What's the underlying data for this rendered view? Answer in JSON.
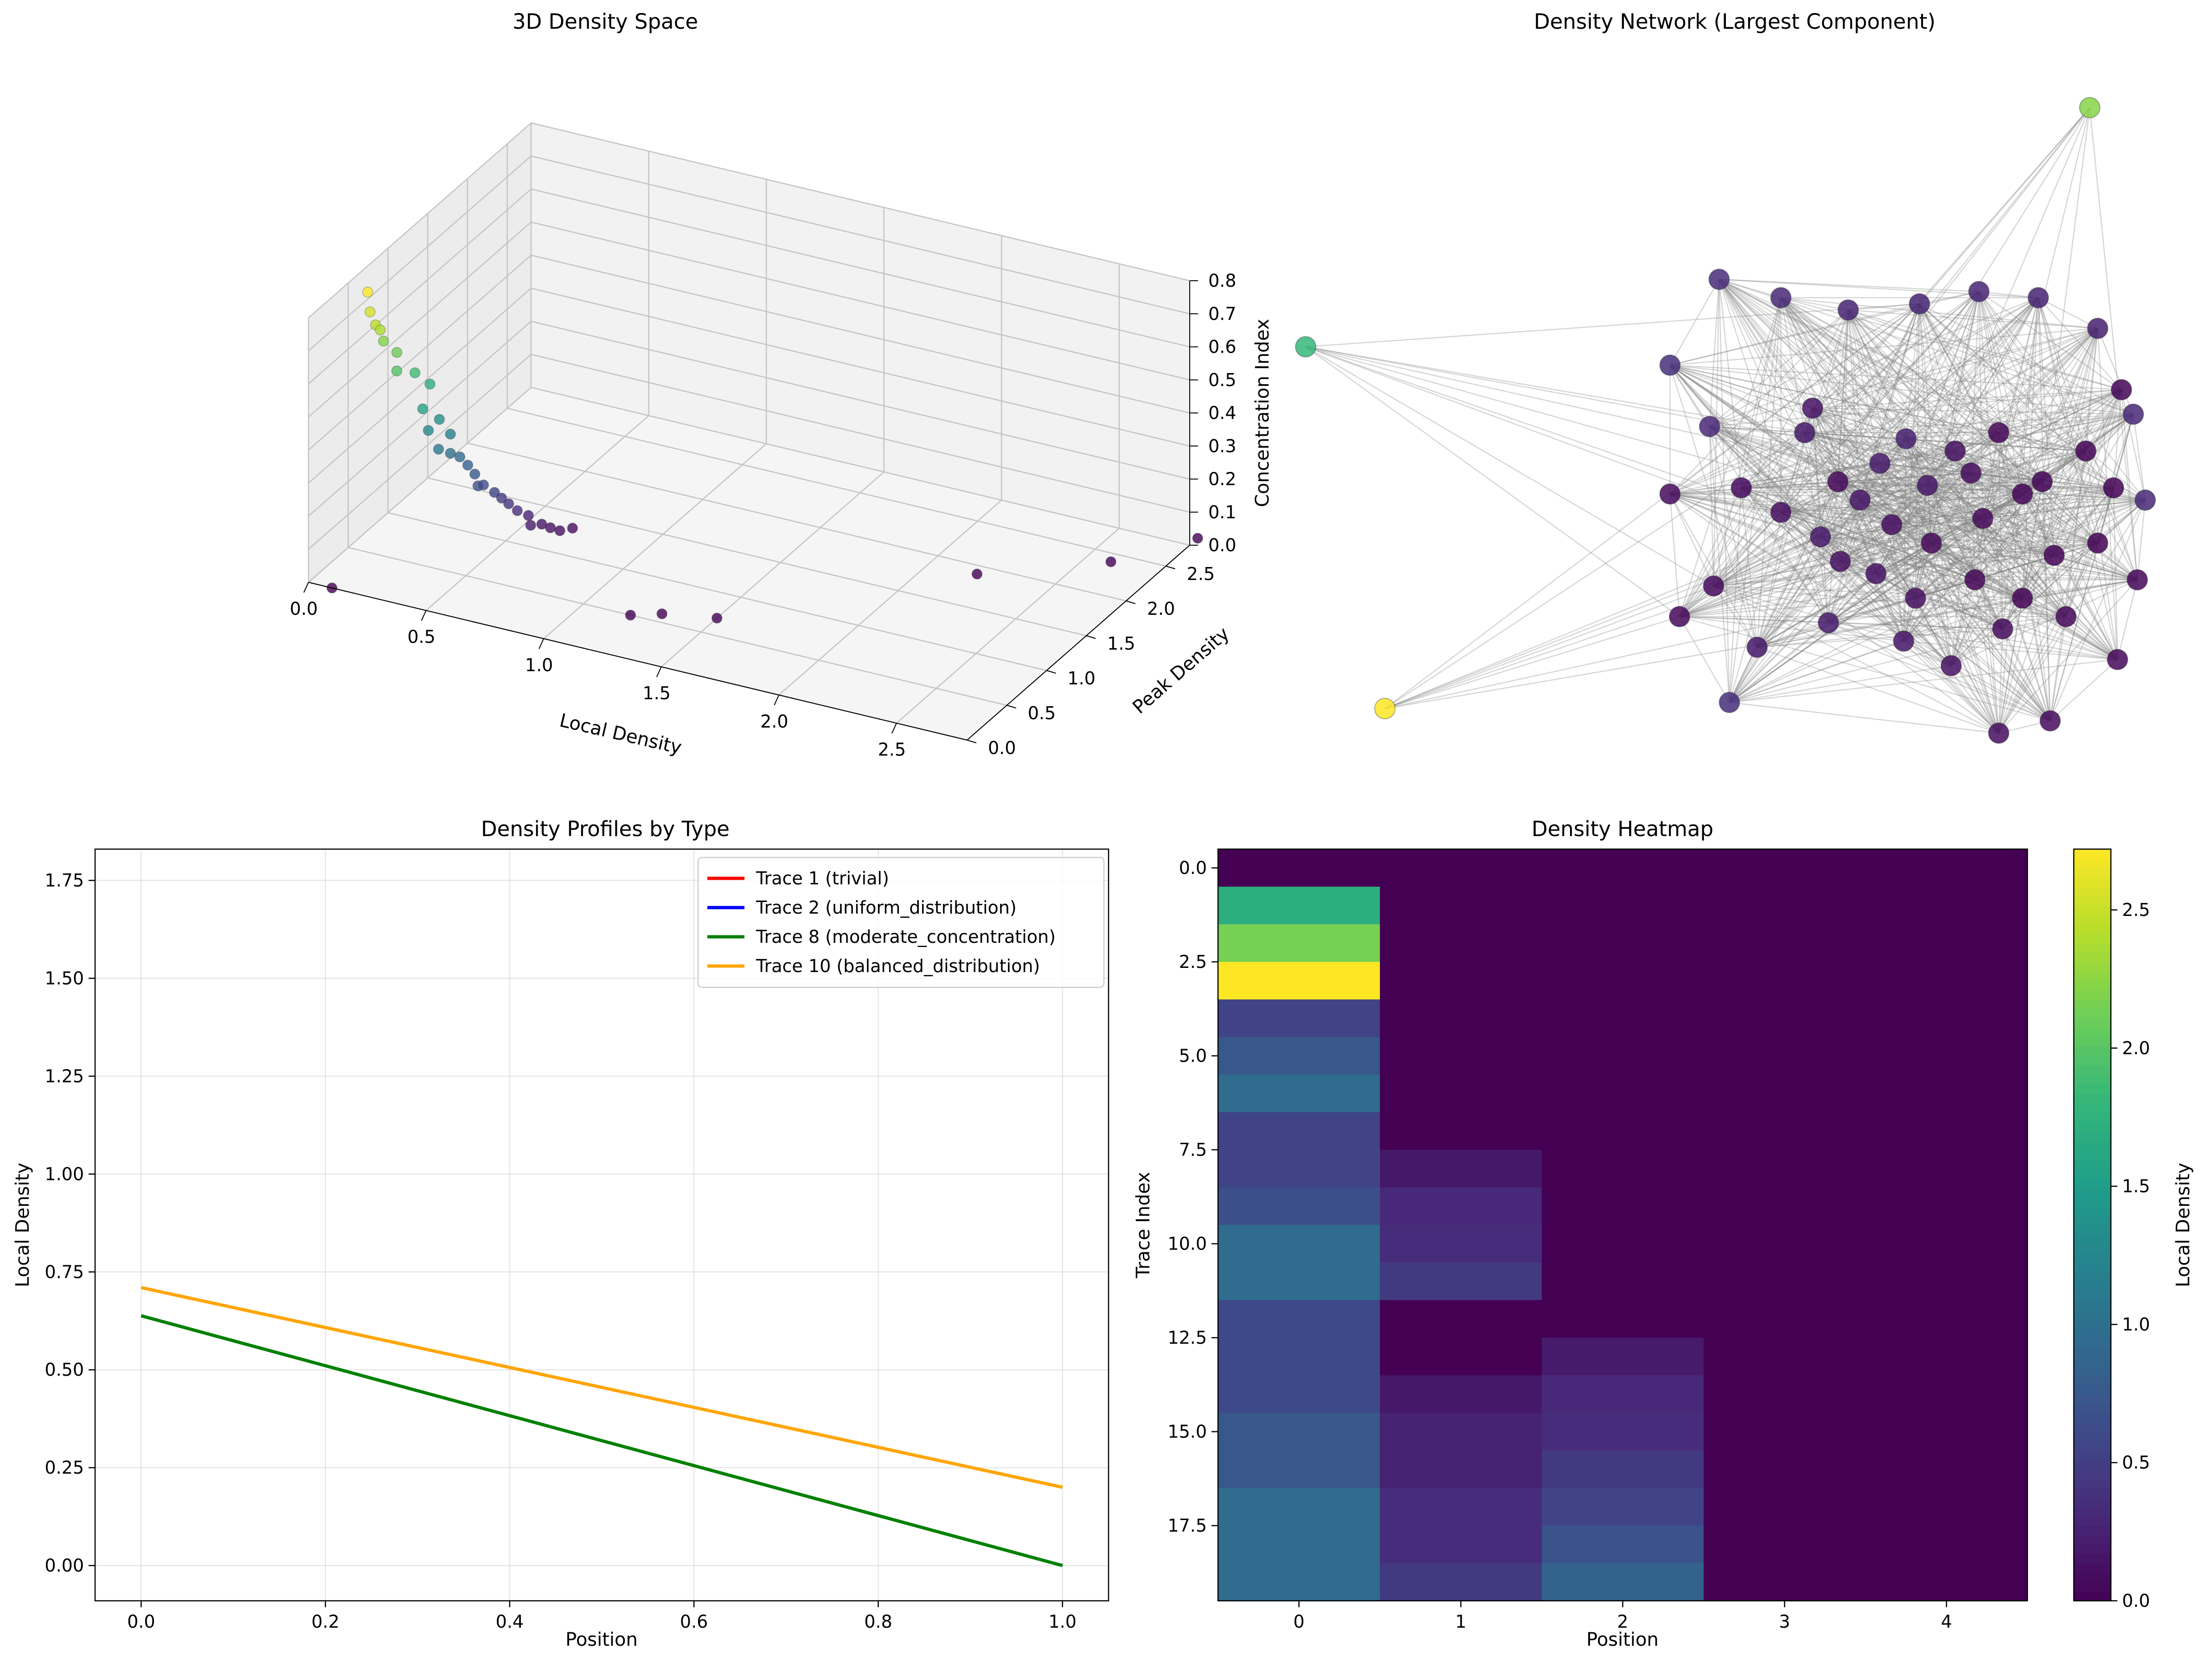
{
  "chart_data": [
    {
      "type": "scatter3d",
      "title": "3D Density Space",
      "xlabel": "Local Density",
      "ylabel": "Peak Density",
      "zlabel": "Concentration Index",
      "xticks": [
        "0.0",
        "0.5",
        "1.0",
        "1.5",
        "2.0",
        "2.5"
      ],
      "yticks": [
        "0.0",
        "0.5",
        "1.0",
        "1.5",
        "2.0",
        "2.5"
      ],
      "zticks": [
        "0.0",
        "0.1",
        "0.2",
        "0.3",
        "0.4",
        "0.5",
        "0.6",
        "0.7",
        "0.8"
      ],
      "xlim": [
        0,
        2.8
      ],
      "ylim": [
        0,
        2.8
      ],
      "zlim": [
        0,
        0.8
      ],
      "points": [
        [
          0.1,
          0.45,
          0.8
        ],
        [
          0.12,
          0.42,
          0.75
        ],
        [
          0.15,
          0.4,
          0.72
        ],
        [
          0.16,
          0.43,
          0.7
        ],
        [
          0.15,
          0.5,
          0.65
        ],
        [
          0.2,
          0.52,
          0.62
        ],
        [
          0.22,
          0.46,
          0.58
        ],
        [
          0.25,
          0.6,
          0.55
        ],
        [
          0.28,
          0.7,
          0.5
        ],
        [
          0.3,
          0.55,
          0.46
        ],
        [
          0.32,
          0.7,
          0.4
        ],
        [
          0.3,
          0.62,
          0.38
        ],
        [
          0.35,
          0.75,
          0.35
        ],
        [
          0.33,
          0.66,
          0.32
        ],
        [
          0.36,
          0.72,
          0.3
        ],
        [
          0.38,
          0.78,
          0.28
        ],
        [
          0.4,
          0.82,
          0.25
        ],
        [
          0.42,
          0.85,
          0.22
        ],
        [
          0.45,
          0.8,
          0.2
        ],
        [
          0.44,
          0.9,
          0.18
        ],
        [
          0.48,
          0.92,
          0.16
        ],
        [
          0.5,
          0.95,
          0.14
        ],
        [
          0.52,
          0.98,
          0.12
        ],
        [
          0.55,
          1.0,
          0.1
        ],
        [
          0.58,
          1.05,
          0.08
        ],
        [
          0.6,
          1.02,
          0.06
        ],
        [
          0.62,
          1.1,
          0.05
        ],
        [
          0.65,
          1.12,
          0.04
        ],
        [
          0.68,
          1.15,
          0.03
        ],
        [
          0.7,
          1.25,
          0.02
        ],
        [
          0.1,
          0.0,
          0.0
        ],
        [
          1.2,
          0.5,
          0.0
        ],
        [
          1.3,
          0.6,
          0.0
        ],
        [
          1.5,
          0.7,
          0.0
        ],
        [
          2.2,
          1.9,
          0.0
        ],
        [
          2.6,
          2.4,
          0.0
        ],
        [
          2.8,
          2.9,
          0.0
        ]
      ]
    },
    {
      "type": "network",
      "title": "Density Network (Largest Component)",
      "nodes": [
        {
          "x": 2.1,
          "y": 6.45,
          "v": 0.18
        },
        {
          "x": 2.2,
          "y": 6.65,
          "v": 0.14
        },
        {
          "x": 2.52,
          "y": 6.05,
          "v": 0.05
        },
        {
          "x": 3.05,
          "y": 6.2,
          "v": 0.2
        },
        {
          "x": 3.38,
          "y": 6.4,
          "v": 0.22
        },
        {
          "x": 2.8,
          "y": 5.9,
          "v": 0.15
        },
        {
          "x": 3.65,
          "y": 6.02,
          "v": 0.16
        },
        {
          "x": 4.2,
          "y": 6.12,
          "v": 0.08
        },
        {
          "x": 4.55,
          "y": 6.45,
          "v": 0.04
        },
        {
          "x": 4.0,
          "y": 6.3,
          "v": 0.12
        },
        {
          "x": 3.2,
          "y": 5.7,
          "v": 0.1
        },
        {
          "x": 3.7,
          "y": 5.55,
          "v": 0.06
        },
        {
          "x": 2.3,
          "y": 5.6,
          "v": 0.18
        },
        {
          "x": 1.8,
          "y": 5.8,
          "v": 0.1
        },
        {
          "x": 1.3,
          "y": 6.0,
          "v": 0.08
        },
        {
          "x": 2.55,
          "y": 5.4,
          "v": 0.12
        },
        {
          "x": 3.0,
          "y": 5.3,
          "v": 0.14
        },
        {
          "x": 3.5,
          "y": 5.1,
          "v": 0.1
        },
        {
          "x": 4.25,
          "y": 5.25,
          "v": 0.04
        },
        {
          "x": 4.85,
          "y": 5.1,
          "v": 0.02
        },
        {
          "x": 4.35,
          "y": 5.75,
          "v": 0.06
        },
        {
          "x": 4.85,
          "y": 5.95,
          "v": 0.04
        },
        {
          "x": 5.25,
          "y": 5.45,
          "v": 0.03
        },
        {
          "x": 5.8,
          "y": 5.55,
          "v": 0.02
        },
        {
          "x": 5.1,
          "y": 6.05,
          "v": 0.03
        },
        {
          "x": 5.65,
          "y": 6.3,
          "v": 0.02
        },
        {
          "x": 6.1,
          "y": 6.8,
          "v": 0.03
        },
        {
          "x": 6.0,
          "y": 6.0,
          "v": 0.02
        },
        {
          "x": 2.4,
          "y": 4.9,
          "v": 0.2
        },
        {
          "x": 1.5,
          "y": 4.7,
          "v": 0.18
        },
        {
          "x": 0.95,
          "y": 5.2,
          "v": 0.08
        },
        {
          "x": 3.35,
          "y": 4.75,
          "v": 0.16
        },
        {
          "x": 3.95,
          "y": 4.55,
          "v": 0.12
        },
        {
          "x": 4.6,
          "y": 4.85,
          "v": 0.08
        },
        {
          "x": 5.4,
          "y": 4.95,
          "v": 0.06
        },
        {
          "x": 6.05,
          "y": 4.6,
          "v": 0.05
        },
        {
          "x": 6.3,
          "y": 5.25,
          "v": 0.04
        },
        {
          "x": 6.4,
          "y": 5.9,
          "v": 0.3
        },
        {
          "x": 6.25,
          "y": 6.6,
          "v": 0.3
        },
        {
          "x": 5.8,
          "y": 7.3,
          "v": 0.22
        },
        {
          "x": 5.05,
          "y": 7.55,
          "v": 0.25
        },
        {
          "x": 4.3,
          "y": 7.6,
          "v": 0.28
        },
        {
          "x": 3.55,
          "y": 7.5,
          "v": 0.25
        },
        {
          "x": 2.65,
          "y": 7.45,
          "v": 0.26
        },
        {
          "x": 1.8,
          "y": 7.55,
          "v": 0.3
        },
        {
          "x": 1.02,
          "y": 7.7,
          "v": 0.33
        },
        {
          "x": 0.4,
          "y": 7.0,
          "v": 0.35
        },
        {
          "x": 0.4,
          "y": 5.95,
          "v": 0.08
        },
        {
          "x": 0.52,
          "y": 4.95,
          "v": 0.05
        },
        {
          "x": 1.15,
          "y": 4.25,
          "v": 0.35
        },
        {
          "x": 0.9,
          "y": 6.5,
          "v": 0.3
        },
        {
          "x": -4.2,
          "y": 7.15,
          "v": 1.8
        },
        {
          "x": -3.2,
          "y": 4.2,
          "v": 2.7
        },
        {
          "x": 5.7,
          "y": 9.1,
          "v": 2.2
        },
        {
          "x": 4.55,
          "y": 4.0,
          "v": 0.1
        },
        {
          "x": 5.2,
          "y": 4.1,
          "v": 0.08
        }
      ],
      "vmin": 0,
      "vmax": 2.7
    },
    {
      "type": "line",
      "title": "Density Profiles by Type",
      "xlabel": "Position",
      "ylabel": "Local Density",
      "xticks": [
        "0.0",
        "0.2",
        "0.4",
        "0.6",
        "0.8",
        "1.0"
      ],
      "yticks": [
        "0.00",
        "0.25",
        "0.50",
        "0.75",
        "1.00",
        "1.25",
        "1.50",
        "1.75"
      ],
      "xlim": [
        -0.05,
        1.05
      ],
      "ylim": [
        -0.09,
        1.83
      ],
      "grid": true,
      "legend_position": "top-right",
      "series": [
        {
          "name": "Trace 1 (trivial)",
          "color": "#ff0000",
          "x": [],
          "y": []
        },
        {
          "name": "Trace 2 (uniform_distribution)",
          "color": "#0000ff",
          "x": [],
          "y": []
        },
        {
          "name": "Trace 8 (moderate_concentration)",
          "color": "#008000",
          "x": [
            0.0,
            1.0
          ],
          "y": [
            0.638,
            0.0
          ]
        },
        {
          "name": "Trace 10 (balanced_distribution)",
          "color": "#ffa500",
          "x": [
            0.0,
            1.0
          ],
          "y": [
            0.71,
            0.2
          ]
        }
      ]
    },
    {
      "type": "heatmap",
      "title": "Density Heatmap",
      "xlabel": "Position",
      "ylabel": "Trace Index",
      "xticks": [
        "0",
        "1",
        "2",
        "3",
        "4"
      ],
      "yticks": [
        "0.0",
        "2.5",
        "5.0",
        "7.5",
        "10.0",
        "12.5",
        "15.0",
        "17.5"
      ],
      "colorbar_label": "Local Density",
      "colorbar_ticks": [
        "0.0",
        "0.5",
        "1.0",
        "1.5",
        "2.0",
        "2.5"
      ],
      "vmin": 0,
      "vmax": 2.72,
      "values": [
        [
          0.0,
          0.0,
          0.0,
          0.0,
          0.0
        ],
        [
          1.7,
          0.0,
          0.0,
          0.0,
          0.0
        ],
        [
          2.15,
          0.0,
          0.0,
          0.0,
          0.0
        ],
        [
          2.72,
          0.0,
          0.0,
          0.0,
          0.0
        ],
        [
          0.55,
          0.0,
          0.0,
          0.0,
          0.0
        ],
        [
          0.75,
          0.0,
          0.0,
          0.0,
          0.0
        ],
        [
          0.95,
          0.0,
          0.0,
          0.0,
          0.0
        ],
        [
          0.55,
          0.0,
          0.0,
          0.0,
          0.0
        ],
        [
          0.55,
          0.18,
          0.0,
          0.0,
          0.0
        ],
        [
          0.65,
          0.3,
          0.0,
          0.0,
          0.0
        ],
        [
          0.95,
          0.35,
          0.0,
          0.0,
          0.0
        ],
        [
          0.95,
          0.45,
          0.0,
          0.0,
          0.0
        ],
        [
          0.6,
          0.0,
          0.0,
          0.0,
          0.0
        ],
        [
          0.6,
          0.0,
          0.2,
          0.0,
          0.0
        ],
        [
          0.6,
          0.18,
          0.3,
          0.0,
          0.0
        ],
        [
          0.75,
          0.25,
          0.35,
          0.0,
          0.0
        ],
        [
          0.75,
          0.25,
          0.45,
          0.0,
          0.0
        ],
        [
          0.95,
          0.35,
          0.55,
          0.0,
          0.0
        ],
        [
          0.95,
          0.35,
          0.7,
          0.0,
          0.0
        ],
        [
          0.95,
          0.45,
          0.85,
          0.0,
          0.0
        ]
      ]
    }
  ]
}
